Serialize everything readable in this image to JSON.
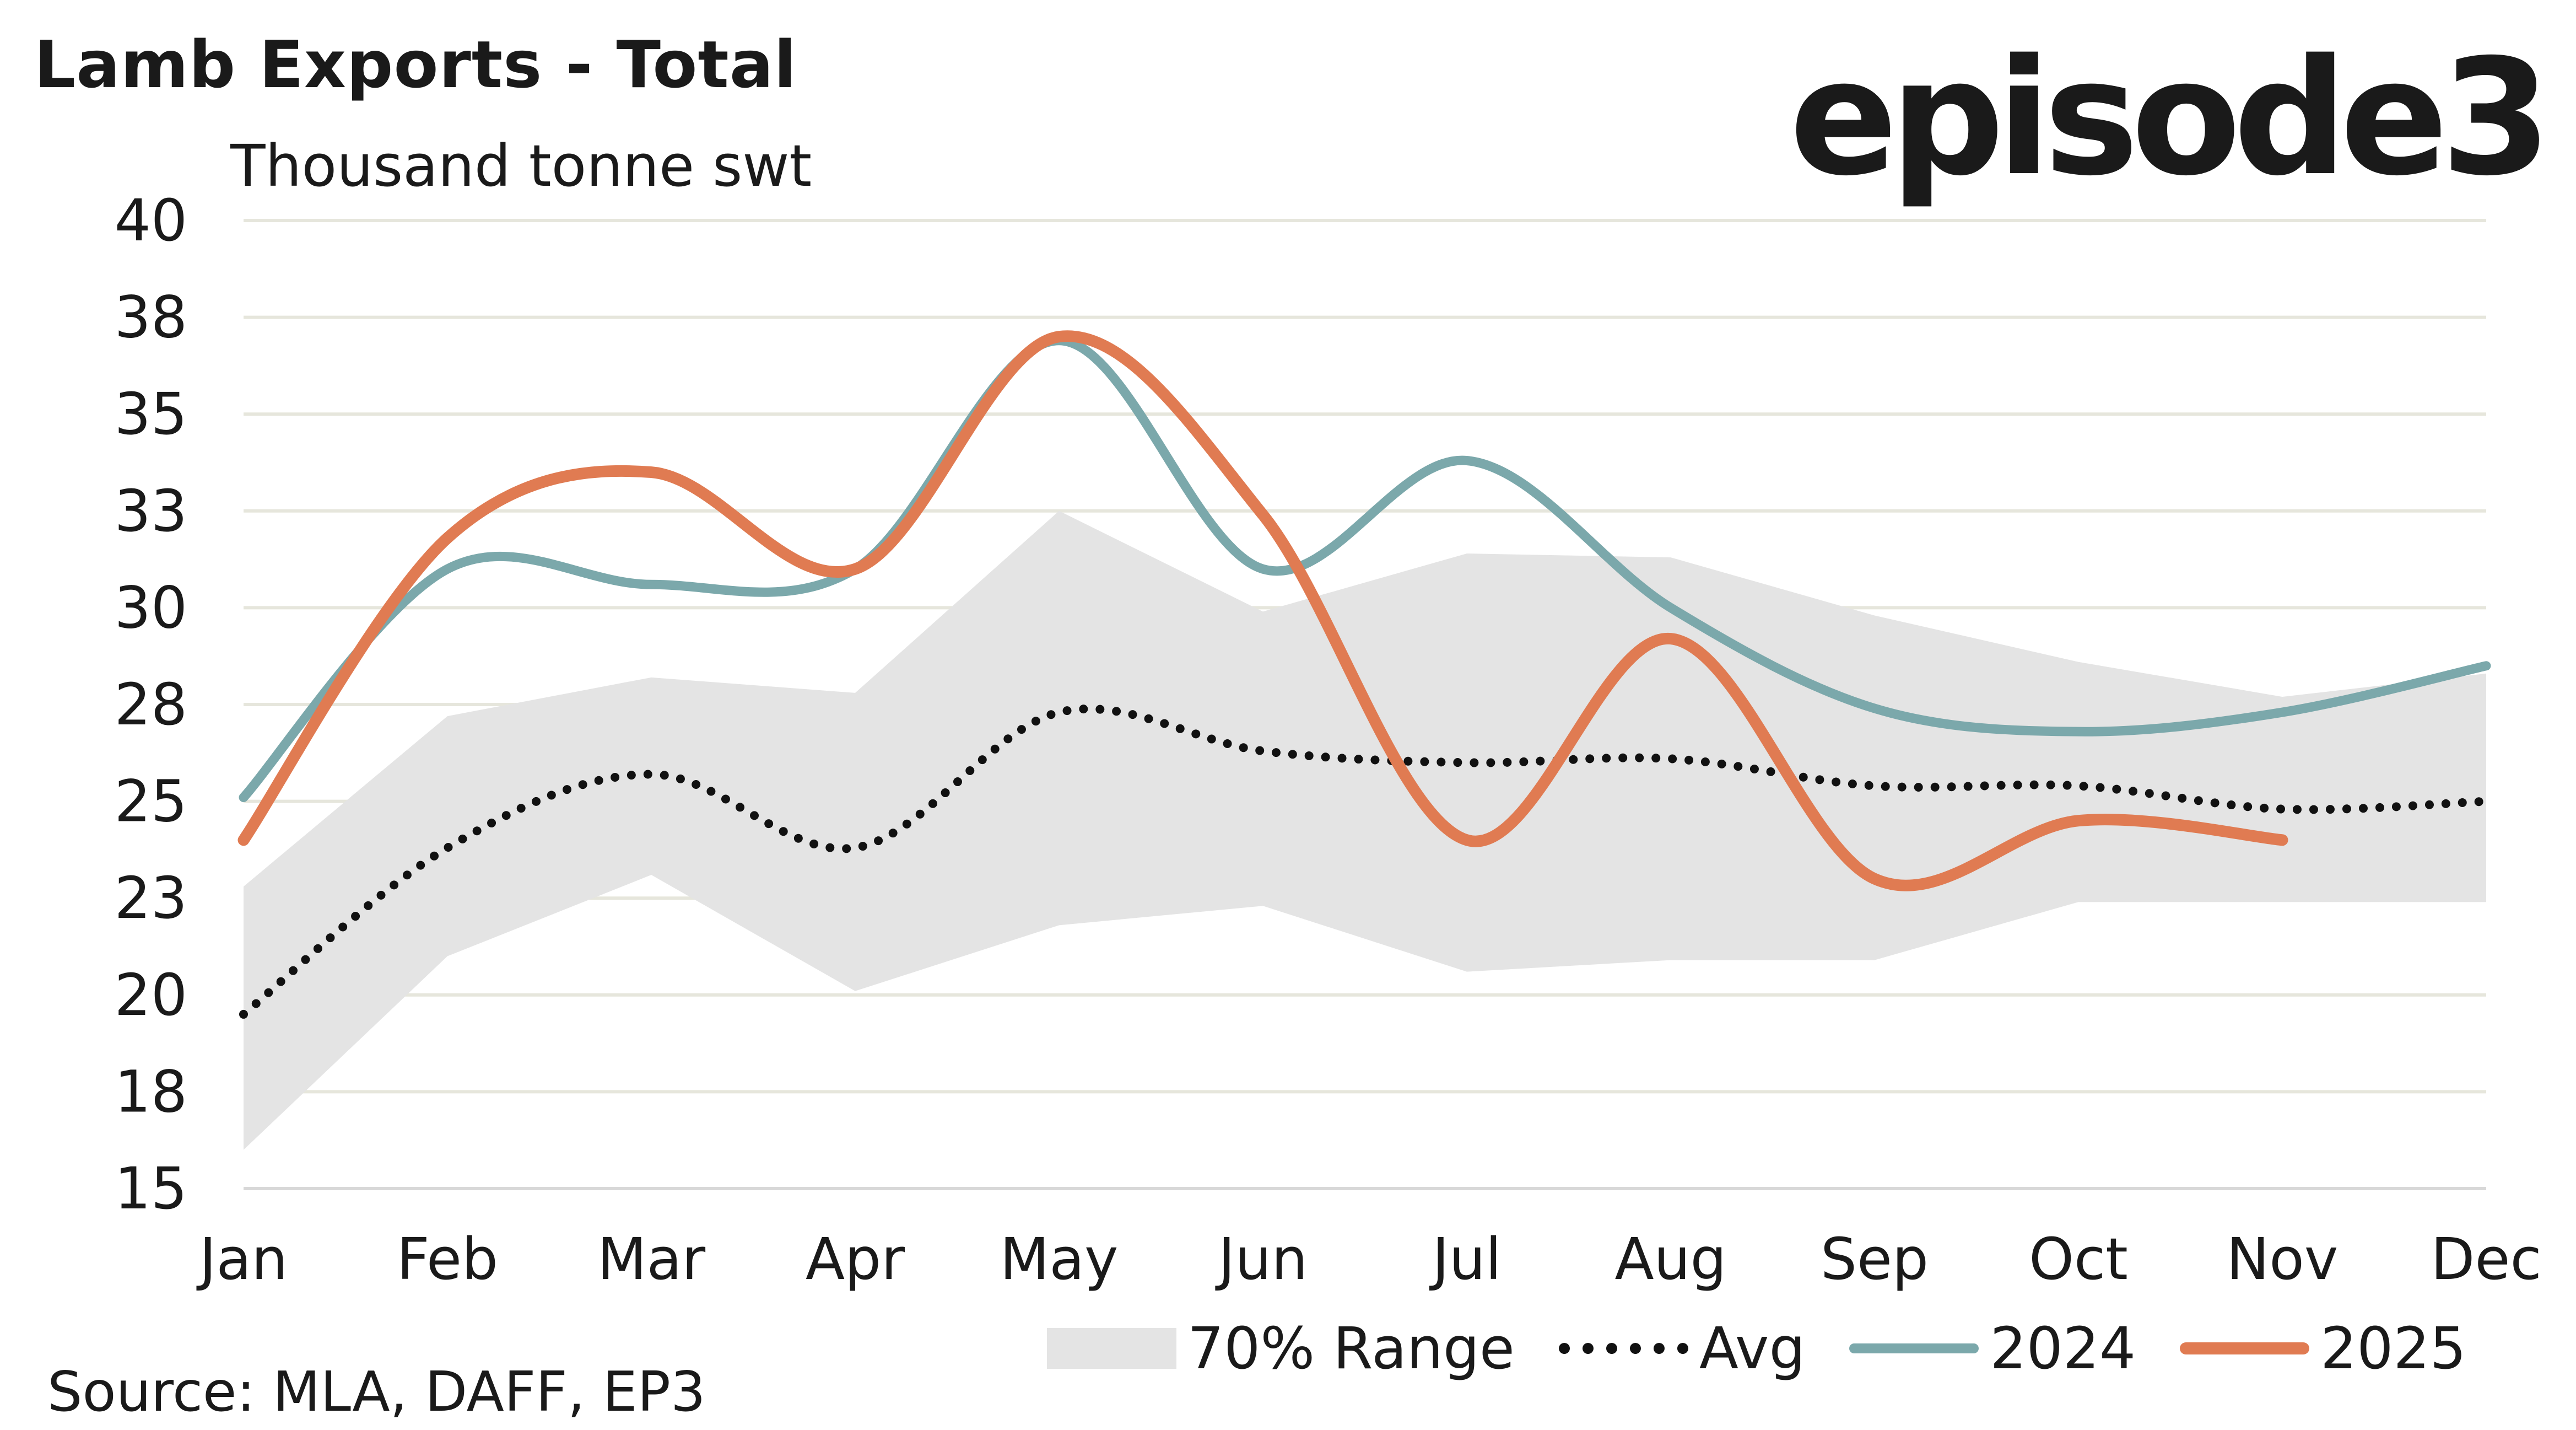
{
  "header": {
    "title": "Lamb Exports - Total",
    "logo_text": "episode3",
    "unit_label": "Thousand tonne swt"
  },
  "footer": {
    "source": "Source: MLA, DAFF, EP3"
  },
  "legend": {
    "range_label": "70% Range",
    "avg_label": "Avg",
    "s2024_label": "2024",
    "s2025_label": "2025"
  },
  "colors": {
    "range_fill": "#e4e4e4",
    "avg": "#111111",
    "s2024": "#7ba8ab",
    "s2025": "#e07b52",
    "grid": "#e6e6dc",
    "axis": "#d8d8d8"
  },
  "chart_data": {
    "type": "line",
    "title": "Lamb Exports - Total",
    "ylabel": "Thousand tonne swt",
    "xlabel": "",
    "ylim": [
      15,
      40
    ],
    "y_ticks": [
      15,
      17.5,
      20,
      22.5,
      25,
      27.5,
      30,
      32.5,
      35,
      37.5,
      40
    ],
    "y_tick_labels": [
      "15",
      "18",
      "20",
      "23",
      "25",
      "28",
      "30",
      "33",
      "35",
      "38",
      "40"
    ],
    "categories": [
      "Jan",
      "Feb",
      "Mar",
      "Apr",
      "May",
      "Jun",
      "Jul",
      "Aug",
      "Sep",
      "Oct",
      "Nov",
      "Dec"
    ],
    "grid": true,
    "legend_position": "bottom",
    "range_band": {
      "name": "70% Range",
      "lower": [
        16.0,
        21.0,
        23.1,
        20.1,
        21.8,
        22.3,
        20.6,
        20.9,
        20.9,
        22.4,
        22.4,
        22.4
      ],
      "upper": [
        22.8,
        27.2,
        28.2,
        27.8,
        32.5,
        29.9,
        31.4,
        31.3,
        29.8,
        28.6,
        27.7,
        28.3
      ]
    },
    "series": [
      {
        "name": "Avg",
        "style": "dotted",
        "values": [
          19.5,
          23.8,
          25.7,
          23.8,
          27.3,
          26.3,
          26.0,
          26.1,
          25.4,
          25.4,
          24.8,
          25.0
        ]
      },
      {
        "name": "2024",
        "style": "solid",
        "values": [
          25.1,
          31.0,
          30.6,
          31.0,
          36.9,
          31.0,
          33.8,
          30.0,
          27.4,
          26.8,
          27.3,
          28.5
        ]
      },
      {
        "name": "2025",
        "style": "solid",
        "values": [
          24.0,
          31.8,
          33.5,
          31.0,
          37.0,
          32.4,
          24.0,
          29.2,
          23.0,
          24.5,
          24.0,
          null
        ]
      }
    ]
  }
}
